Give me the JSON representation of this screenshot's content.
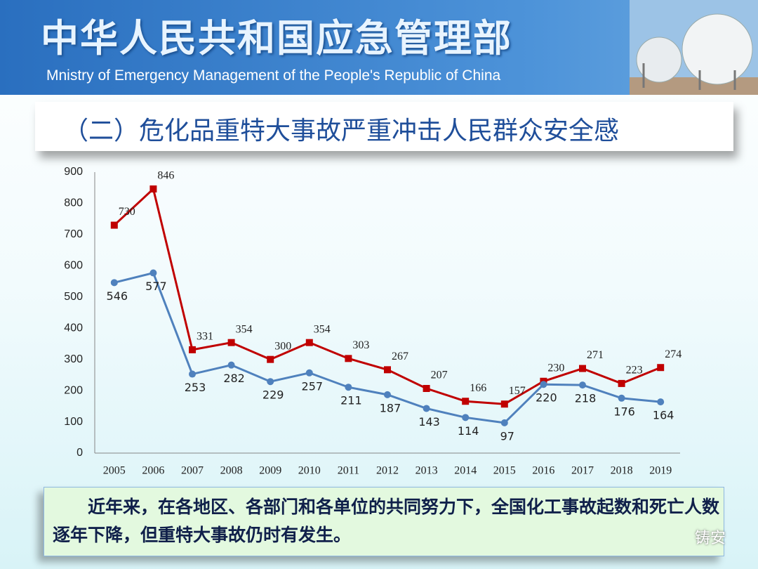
{
  "header": {
    "title": "中华人民共和国应急管理部",
    "subtitle": "Mnistry of Emergency Management of the People's Republic of China"
  },
  "section_title": "（二）危化品重特大事故严重冲击人民群众安全感",
  "chart_data": {
    "type": "line",
    "categories": [
      "2005",
      "2006",
      "2007",
      "2008",
      "2009",
      "2010",
      "2011",
      "2012",
      "2013",
      "2014",
      "2015",
      "2016",
      "2017",
      "2018",
      "2019"
    ],
    "series": [
      {
        "color": "#c00000",
        "values": [
          730,
          846,
          331,
          354,
          300,
          354,
          303,
          267,
          207,
          166,
          157,
          230,
          271,
          223,
          274
        ]
      },
      {
        "color": "#4f81bd",
        "values": [
          546,
          577,
          253,
          282,
          229,
          257,
          211,
          187,
          143,
          114,
          97,
          220,
          218,
          176,
          164
        ]
      }
    ],
    "ylim": [
      0,
      900
    ],
    "yticks": [
      0,
      100,
      200,
      300,
      400,
      500,
      600,
      700,
      800,
      900
    ],
    "grid": false
  },
  "note": "近年来，在各地区、各部门和各单位的共同努力下，全国化工事故起数和死亡人数逐年下降，但重特大事故仍时有发生。",
  "watermark": "铸安"
}
